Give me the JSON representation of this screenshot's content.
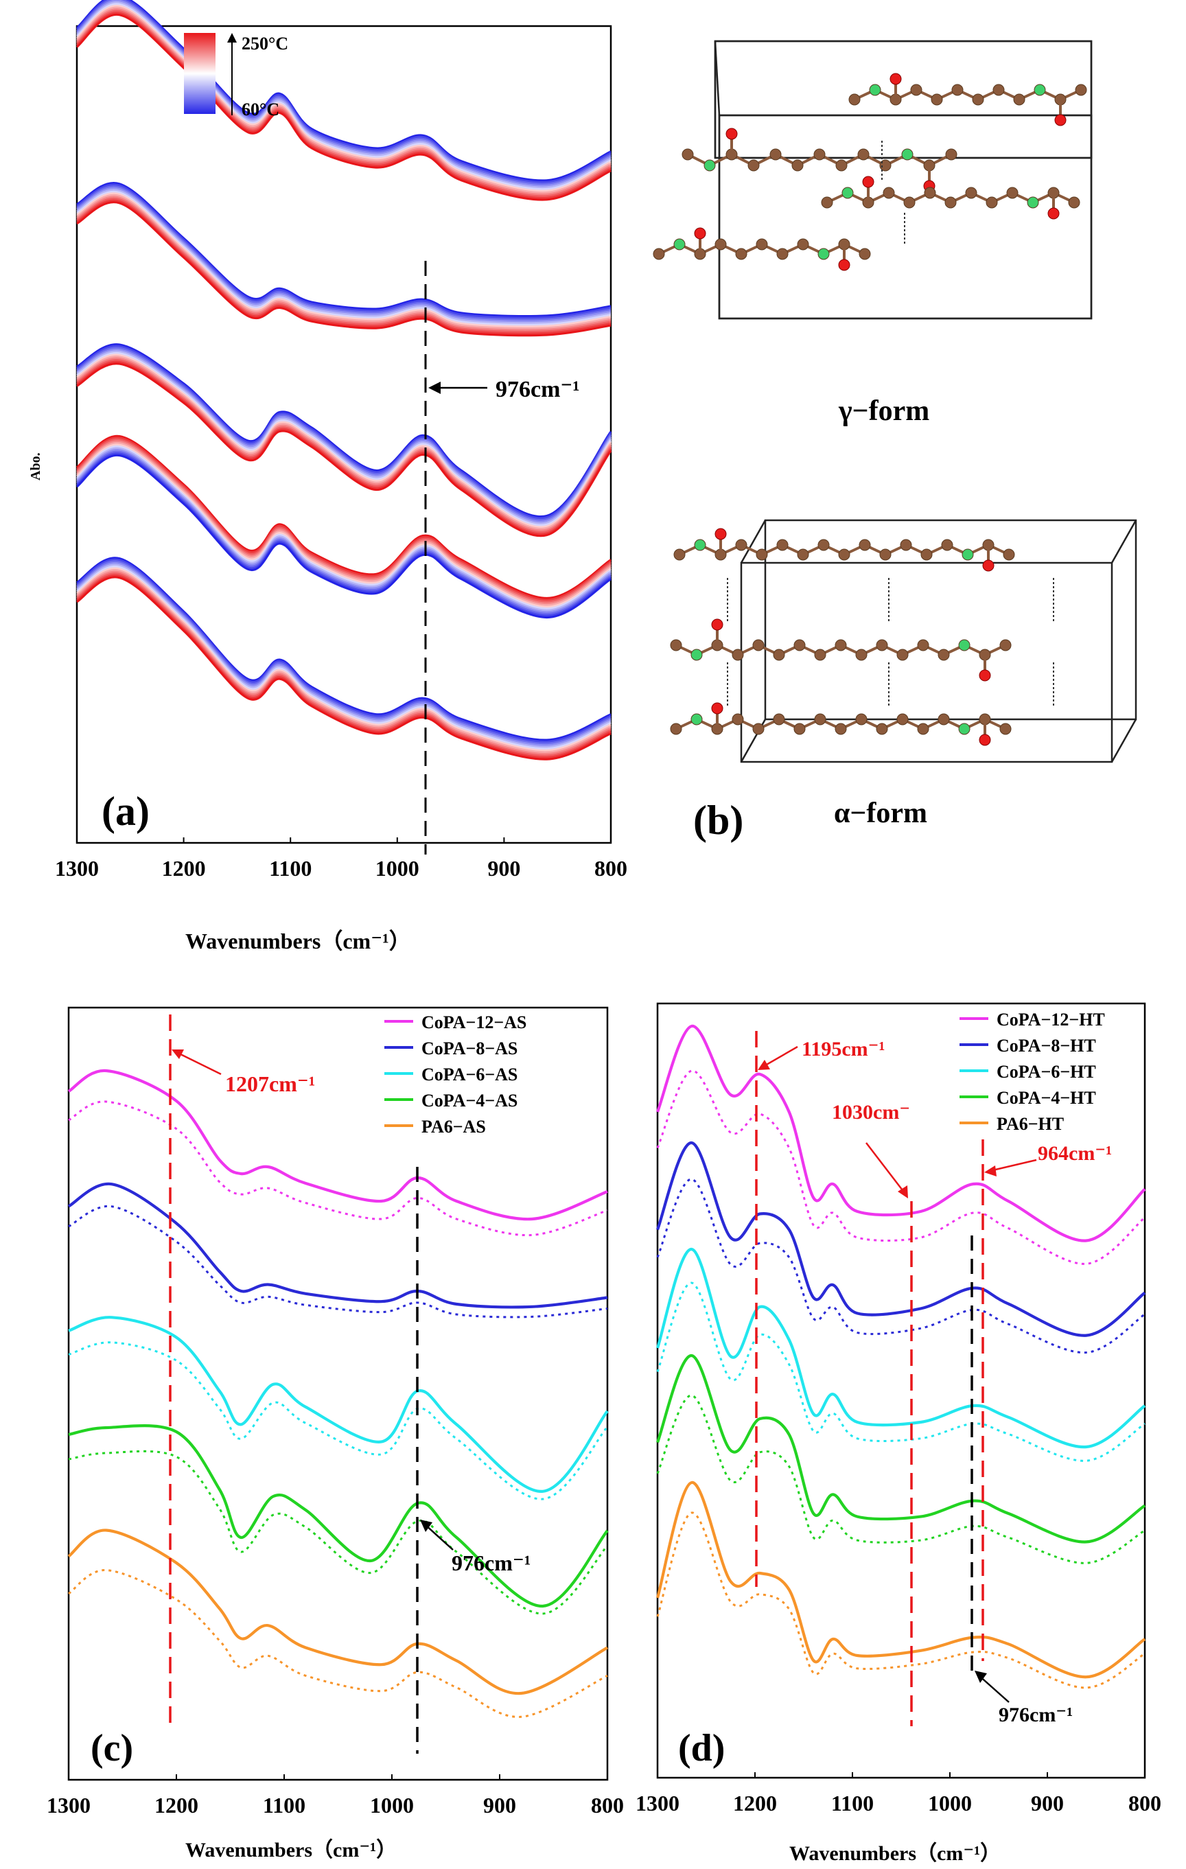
{
  "colors": {
    "hot": "#e8161a",
    "cold": "#2424e6",
    "annot_red": "#e8161a",
    "annot_black": "#000000",
    "atom_c": "#8b5a3c",
    "atom_n": "#3fd06a",
    "atom_o": "#e81c1c",
    "bond": "#8b5a3c"
  },
  "panel_a": {
    "letter": "(a)",
    "ylabel": "Abo.",
    "xlabel": "Wavenumbers（cm⁻¹）",
    "xticks": [
      1300,
      1200,
      1100,
      1000,
      900,
      800
    ],
    "colorbar_top": "250°C",
    "colorbar_bottom": "60°C",
    "annotation": "976cm⁻¹"
  },
  "panel_b": {
    "letter": "(b)",
    "gamma_label": "γ−form",
    "alpha_label": "α−form"
  },
  "panel_c": {
    "letter": "(c)",
    "xlabel": "Wavenumbers（cm⁻¹）",
    "xticks": [
      1300,
      1200,
      1100,
      1000,
      900,
      800
    ],
    "ann_red": "1207cm⁻¹",
    "ann_black": "976cm⁻¹",
    "legend": [
      "CoPA−12−AS",
      "CoPA−8−AS",
      "CoPA−6−AS",
      "CoPA−4−AS",
      "PA6−AS"
    ]
  },
  "panel_d": {
    "letter": "(d)",
    "xlabel": "Wavenumbers（cm⁻¹）",
    "xticks": [
      1300,
      1200,
      1100,
      1000,
      900,
      800
    ],
    "ann_1195": "1195cm⁻¹",
    "ann_1030": "1030cm⁻",
    "ann_964": "964cm⁻¹",
    "ann_976": "976cm⁻¹",
    "legend": [
      "CoPA−12−HT",
      "CoPA−8−HT",
      "CoPA−6−HT",
      "CoPA−4−HT",
      "PA6−HT"
    ]
  },
  "chart_data": [
    {
      "type": "line",
      "panel": "a",
      "xlabel": "Wavenumbers（cm⁻¹）",
      "ylabel": "Abo.",
      "xlim": [
        1300,
        800
      ],
      "note_colorbar": [
        "250°C",
        "60°C"
      ],
      "series": [
        {
          "x": [
            1300,
            1260,
            1200,
            1140,
            1110,
            1080,
            1020,
            976,
            940,
            860,
            800
          ],
          "y": [
            0.75,
            0.95,
            0.62,
            0.22,
            0.34,
            0.12,
            0.0,
            0.08,
            -0.08,
            -0.2,
            -0.02
          ]
        },
        {
          "x": [
            1300,
            1260,
            1200,
            1140,
            1110,
            1080,
            1020,
            976,
            940,
            860,
            800
          ],
          "y": [
            0.8,
            0.95,
            0.55,
            0.12,
            0.18,
            0.08,
            0.03,
            0.1,
            0.0,
            -0.02,
            0.05
          ]
        },
        {
          "x": [
            1300,
            1260,
            1200,
            1140,
            1110,
            1080,
            1020,
            976,
            940,
            860,
            800
          ],
          "y": [
            0.75,
            0.92,
            0.62,
            0.18,
            0.4,
            0.28,
            -0.05,
            0.22,
            -0.05,
            -0.4,
            0.25
          ]
        },
        {
          "x": [
            1300,
            1260,
            1200,
            1140,
            1110,
            1080,
            1020,
            976,
            940,
            860,
            800
          ],
          "y": [
            0.7,
            0.92,
            0.58,
            0.12,
            0.3,
            0.1,
            -0.05,
            0.22,
            0.05,
            -0.22,
            0.05
          ]
        },
        {
          "x": [
            1300,
            1260,
            1200,
            1140,
            1110,
            1080,
            1020,
            976,
            940,
            860,
            800
          ],
          "y": [
            0.8,
            0.95,
            0.62,
            0.2,
            0.32,
            0.15,
            -0.02,
            0.08,
            -0.05,
            -0.18,
            -0.02
          ]
        }
      ]
    },
    {
      "type": "line",
      "panel": "c",
      "xlabel": "Wavenumbers（cm⁻¹）",
      "xlim": [
        1300,
        800
      ],
      "series": [
        {
          "name": "CoPA−12−AS",
          "x": [
            1300,
            1265,
            1200,
            1160,
            1140,
            1115,
            1080,
            1010,
            976,
            940,
            870,
            800
          ],
          "y": [
            0.85,
            1.0,
            0.78,
            0.35,
            0.25,
            0.3,
            0.18,
            0.05,
            0.22,
            0.05,
            -0.08,
            0.12
          ]
        },
        {
          "name": "CoPA−8−AS",
          "x": [
            1300,
            1260,
            1200,
            1160,
            1140,
            1115,
            1080,
            1010,
            976,
            940,
            870,
            800
          ],
          "y": [
            0.75,
            0.92,
            0.62,
            0.25,
            0.1,
            0.15,
            0.08,
            0.02,
            0.1,
            0.0,
            -0.02,
            0.05
          ]
        },
        {
          "name": "CoPA−6−AS",
          "x": [
            1300,
            1260,
            1200,
            1160,
            1140,
            1110,
            1080,
            1010,
            976,
            940,
            860,
            800
          ],
          "y": [
            0.75,
            0.85,
            0.7,
            0.3,
            0.05,
            0.35,
            0.18,
            -0.08,
            0.3,
            0.05,
            -0.45,
            0.15
          ]
        },
        {
          "name": "CoPA−4−AS",
          "x": [
            1300,
            1265,
            1200,
            1160,
            1140,
            1110,
            1080,
            1020,
            976,
            940,
            860,
            800
          ],
          "y": [
            0.8,
            0.85,
            0.82,
            0.4,
            0.05,
            0.35,
            0.25,
            -0.12,
            0.3,
            0.05,
            -0.45,
            0.1
          ]
        },
        {
          "name": "PA6−AS",
          "x": [
            1300,
            1265,
            1200,
            1160,
            1140,
            1115,
            1080,
            1010,
            976,
            940,
            880,
            800
          ],
          "y": [
            0.75,
            0.95,
            0.7,
            0.35,
            0.12,
            0.22,
            0.05,
            -0.08,
            0.08,
            -0.05,
            -0.3,
            0.05
          ]
        }
      ]
    },
    {
      "type": "line",
      "panel": "d",
      "xlabel": "Wavenumbers（cm⁻¹）",
      "xlim": [
        1300,
        800
      ],
      "series": [
        {
          "name": "CoPA−12−HT",
          "x": [
            1300,
            1265,
            1225,
            1195,
            1165,
            1140,
            1120,
            1095,
            1030,
            976,
            940,
            860,
            800
          ],
          "y": [
            0.5,
            1.0,
            0.6,
            0.72,
            0.5,
            0.0,
            0.08,
            -0.08,
            -0.08,
            0.08,
            -0.02,
            -0.25,
            0.05
          ]
        },
        {
          "name": "CoPA−8−HT",
          "x": [
            1300,
            1265,
            1225,
            1195,
            1165,
            1140,
            1120,
            1095,
            1030,
            976,
            940,
            860,
            800
          ],
          "y": [
            0.45,
            1.0,
            0.4,
            0.55,
            0.45,
            0.02,
            0.1,
            -0.08,
            -0.05,
            0.08,
            -0.02,
            -0.22,
            0.05
          ]
        },
        {
          "name": "CoPA−6−HT",
          "x": [
            1300,
            1265,
            1225,
            1195,
            1165,
            1140,
            1120,
            1095,
            1030,
            976,
            940,
            860,
            800
          ],
          "y": [
            0.4,
            1.0,
            0.35,
            0.65,
            0.45,
            0.0,
            0.12,
            -0.05,
            -0.05,
            0.05,
            -0.02,
            -0.2,
            0.05
          ]
        },
        {
          "name": "CoPA−4−HT",
          "x": [
            1300,
            1265,
            1225,
            1195,
            1165,
            1140,
            1120,
            1095,
            1030,
            976,
            940,
            860,
            800
          ],
          "y": [
            0.45,
            1.0,
            0.4,
            0.6,
            0.5,
            0.0,
            0.12,
            -0.02,
            -0.02,
            0.08,
            0.0,
            -0.18,
            0.05
          ]
        },
        {
          "name": "PA6−HT",
          "x": [
            1300,
            1265,
            1225,
            1195,
            1165,
            1140,
            1120,
            1095,
            1030,
            976,
            940,
            860,
            800
          ],
          "y": [
            0.3,
            1.0,
            0.4,
            0.45,
            0.35,
            -0.08,
            0.05,
            -0.05,
            -0.02,
            0.06,
            0.02,
            -0.18,
            0.05
          ]
        }
      ]
    }
  ]
}
